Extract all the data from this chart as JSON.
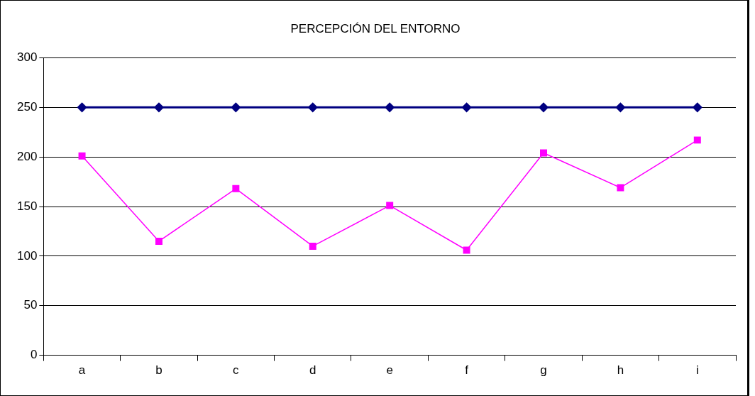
{
  "chart_data": {
    "type": "line",
    "title": "PERCEPCIÓN DEL ENTORNO",
    "categories": [
      "a",
      "b",
      "c",
      "d",
      "e",
      "f",
      "g",
      "h",
      "i"
    ],
    "series": [
      {
        "color": "#000080",
        "marker": "diamond",
        "values": [
          250,
          250,
          250,
          250,
          250,
          250,
          250,
          250,
          250
        ]
      },
      {
        "color": "#ff00ff",
        "marker": "square",
        "values": [
          201,
          115,
          168,
          110,
          151,
          106,
          204,
          169,
          217
        ]
      }
    ],
    "ylim": [
      0,
      300
    ],
    "yticks": [
      0,
      50,
      100,
      150,
      200,
      250,
      300
    ],
    "grid": "y",
    "legend": false,
    "line_style": "solid"
  }
}
